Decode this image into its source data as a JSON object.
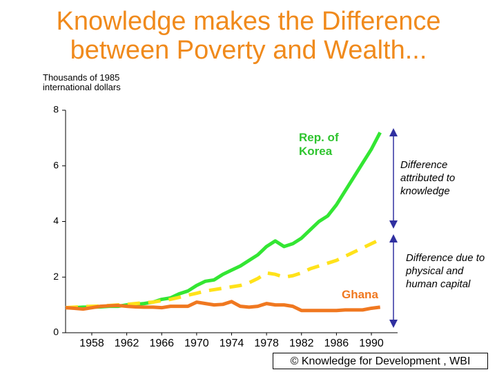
{
  "chart_data": {
    "type": "line",
    "title": "Knowledge makes the Difference between Poverty and Wealth...",
    "y_axis_label": "Thousands of 1985 international dollars",
    "x": [
      1955,
      1956,
      1957,
      1958,
      1959,
      1960,
      1961,
      1962,
      1963,
      1964,
      1965,
      1966,
      1967,
      1968,
      1969,
      1970,
      1971,
      1972,
      1973,
      1974,
      1975,
      1976,
      1977,
      1978,
      1979,
      1980,
      1981,
      1982,
      1983,
      1984,
      1985,
      1986,
      1987,
      1988,
      1989,
      1990,
      1991
    ],
    "series": [
      {
        "name": "Rep. of Korea",
        "color": "#33e633",
        "values": [
          0.9,
          0.9,
          0.92,
          0.92,
          0.93,
          0.95,
          0.95,
          1.0,
          1.02,
          1.05,
          1.1,
          1.2,
          1.25,
          1.4,
          1.5,
          1.7,
          1.85,
          1.9,
          2.1,
          2.25,
          2.4,
          2.6,
          2.8,
          3.1,
          3.3,
          3.1,
          3.2,
          3.4,
          3.7,
          4.0,
          4.2,
          4.6,
          5.1,
          5.6,
          6.1,
          6.6,
          7.2
        ]
      },
      {
        "color": "#ffe21a",
        "dashed": true,
        "values": [
          0.9,
          0.92,
          0.94,
          0.95,
          0.96,
          0.98,
          1.0,
          1.02,
          1.05,
          1.08,
          1.1,
          1.15,
          1.2,
          1.27,
          1.35,
          1.42,
          1.5,
          1.55,
          1.6,
          1.65,
          1.7,
          1.8,
          1.95,
          2.15,
          2.1,
          2.0,
          2.05,
          2.15,
          2.3,
          2.4,
          2.5,
          2.6,
          2.75,
          2.9,
          3.05,
          3.2,
          3.35
        ]
      },
      {
        "name": "Ghana",
        "color": "#f07820",
        "values": [
          0.9,
          0.88,
          0.85,
          0.9,
          0.95,
          0.97,
          0.98,
          0.95,
          0.93,
          0.92,
          0.92,
          0.9,
          0.95,
          0.95,
          0.95,
          1.1,
          1.05,
          1.0,
          1.02,
          1.12,
          0.95,
          0.92,
          0.95,
          1.05,
          1.0,
          1.0,
          0.95,
          0.8,
          0.8,
          0.8,
          0.8,
          0.8,
          0.82,
          0.82,
          0.82,
          0.88,
          0.92
        ]
      }
    ],
    "xlim": [
      1955,
      1993
    ],
    "xticks": [
      1958,
      1962,
      1966,
      1970,
      1974,
      1978,
      1982,
      1986,
      1990
    ],
    "ylim": [
      0,
      8
    ],
    "yticks": [
      0,
      2,
      4,
      6,
      8
    ],
    "annotations": [
      "Difference attributed to knowledge",
      "Difference due to physical and human capital"
    ],
    "footer": "© Knowledge for Development , WBI"
  }
}
